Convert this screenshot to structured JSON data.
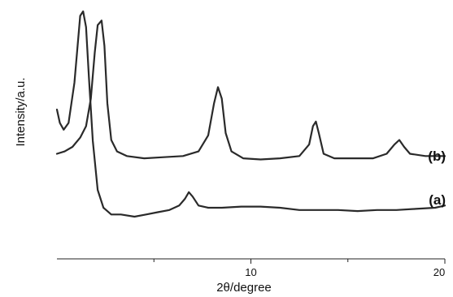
{
  "chart_data": {
    "type": "line",
    "title": "",
    "xlabel": "2θ/degree",
    "ylabel": "Intensity/a.u.",
    "xlim": [
      0,
      20
    ],
    "x_tick_labels": [
      {
        "value": 10,
        "label": "10"
      },
      {
        "value": 20,
        "label": "20"
      }
    ],
    "x_minor_ticks": [
      5,
      15
    ],
    "grid": false,
    "ylim": [
      0,
      1
    ],
    "y_axis_hidden": true,
    "series": [
      {
        "name": "(a)",
        "points": [
          [
            0.0,
            0.56
          ],
          [
            0.15,
            0.5
          ],
          [
            0.35,
            0.47
          ],
          [
            0.6,
            0.5
          ],
          [
            0.9,
            0.68
          ],
          [
            1.2,
            0.98
          ],
          [
            1.35,
            1.0
          ],
          [
            1.5,
            0.93
          ],
          [
            1.65,
            0.7
          ],
          [
            1.85,
            0.42
          ],
          [
            2.1,
            0.2
          ],
          [
            2.4,
            0.12
          ],
          [
            2.8,
            0.09
          ],
          [
            3.3,
            0.09
          ],
          [
            4.0,
            0.08
          ],
          [
            4.6,
            0.09
          ],
          [
            5.2,
            0.1
          ],
          [
            5.8,
            0.11
          ],
          [
            6.3,
            0.13
          ],
          [
            6.6,
            0.16
          ],
          [
            6.8,
            0.19
          ],
          [
            7.0,
            0.17
          ],
          [
            7.3,
            0.13
          ],
          [
            7.8,
            0.12
          ],
          [
            8.5,
            0.12
          ],
          [
            9.5,
            0.125
          ],
          [
            10.5,
            0.125
          ],
          [
            11.5,
            0.12
          ],
          [
            12.5,
            0.11
          ],
          [
            13.5,
            0.11
          ],
          [
            14.5,
            0.11
          ],
          [
            15.5,
            0.105
          ],
          [
            16.5,
            0.11
          ],
          [
            17.5,
            0.11
          ],
          [
            18.5,
            0.115
          ],
          [
            19.5,
            0.12
          ],
          [
            20.0,
            0.13
          ]
        ]
      },
      {
        "name": "(b)",
        "points": [
          [
            0.0,
            0.38
          ],
          [
            0.4,
            0.39
          ],
          [
            0.8,
            0.41
          ],
          [
            1.2,
            0.45
          ],
          [
            1.5,
            0.5
          ],
          [
            1.75,
            0.62
          ],
          [
            1.95,
            0.82
          ],
          [
            2.1,
            0.94
          ],
          [
            2.3,
            0.96
          ],
          [
            2.45,
            0.85
          ],
          [
            2.6,
            0.6
          ],
          [
            2.8,
            0.44
          ],
          [
            3.1,
            0.39
          ],
          [
            3.6,
            0.37
          ],
          [
            4.5,
            0.36
          ],
          [
            5.5,
            0.365
          ],
          [
            6.5,
            0.37
          ],
          [
            7.3,
            0.39
          ],
          [
            7.8,
            0.46
          ],
          [
            8.1,
            0.6
          ],
          [
            8.3,
            0.67
          ],
          [
            8.5,
            0.62
          ],
          [
            8.7,
            0.47
          ],
          [
            9.0,
            0.39
          ],
          [
            9.6,
            0.36
          ],
          [
            10.5,
            0.355
          ],
          [
            11.5,
            0.36
          ],
          [
            12.5,
            0.37
          ],
          [
            13.0,
            0.42
          ],
          [
            13.2,
            0.5
          ],
          [
            13.35,
            0.52
          ],
          [
            13.5,
            0.47
          ],
          [
            13.75,
            0.38
          ],
          [
            14.3,
            0.36
          ],
          [
            15.3,
            0.36
          ],
          [
            16.3,
            0.36
          ],
          [
            17.0,
            0.38
          ],
          [
            17.4,
            0.42
          ],
          [
            17.65,
            0.44
          ],
          [
            17.9,
            0.41
          ],
          [
            18.2,
            0.38
          ],
          [
            19.0,
            0.37
          ],
          [
            20.0,
            0.37
          ]
        ]
      }
    ]
  }
}
